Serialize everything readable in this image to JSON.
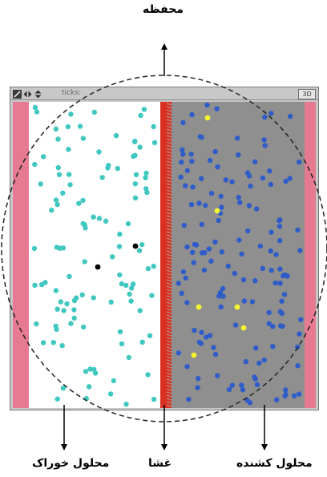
{
  "labels": {
    "container": "محفظه",
    "feed_solution": "محلول خوراک",
    "membrane": "غشا",
    "draw_solution": "محلول کشنده"
  },
  "toolbar": {
    "ticks_label": "ticks:",
    "three_d_button": "3D",
    "controls": [
      "edit-icon",
      "move-icon",
      "zoom-icon"
    ]
  },
  "colors": {
    "wall": "#e67a90",
    "feed_bg": "#ffffff",
    "membrane": "#d93020",
    "draw_bg": "#8f8f8f",
    "feed_particle": "#40c8c0",
    "draw_particle": "#2f5cc8",
    "solute_yellow": "#f4f430",
    "solute_black": "#000000"
  }
}
